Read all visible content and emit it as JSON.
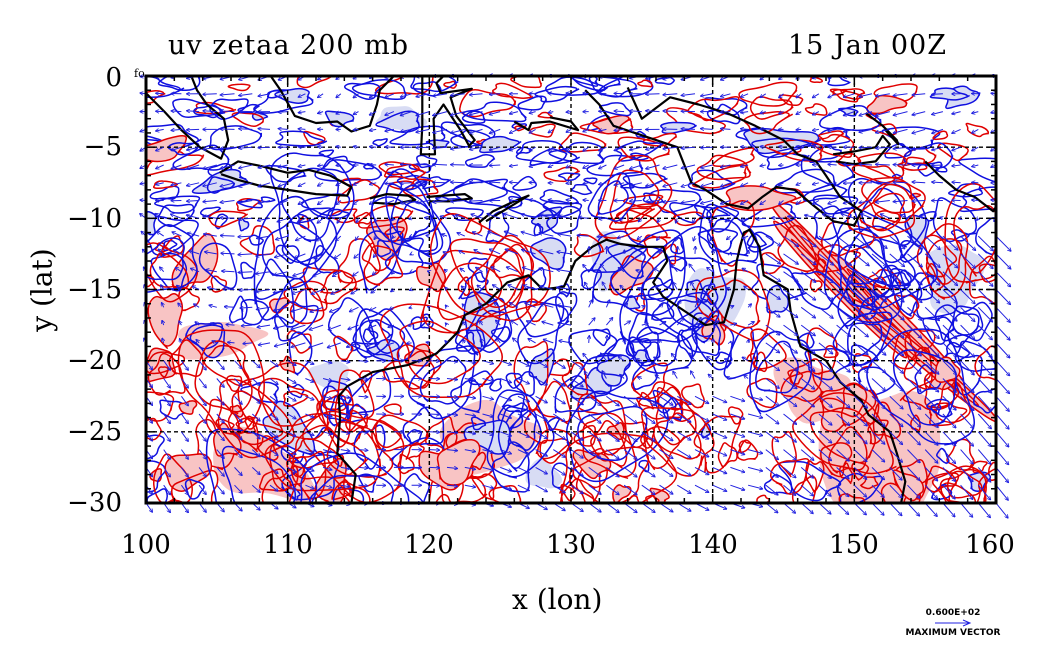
{
  "header": {
    "title_left": "uv zetaa 200 mb",
    "title_right": "15 Jan 00Z"
  },
  "axes": {
    "xlabel": "x (lon)",
    "ylabel": "y (lat)",
    "xticks": [
      "100",
      "110",
      "120",
      "130",
      "140",
      "150",
      "160"
    ],
    "yticks": [
      "0",
      "−5",
      "−10",
      "−15",
      "−20",
      "−25",
      "−30"
    ],
    "corner_label": "fo"
  },
  "legend": {
    "max_vector_value": "0.600E+02",
    "max_vector_label": "MAXIMUM VECTOR"
  },
  "chart_data": {
    "type": "map",
    "title": "uv zetaa 200 mb",
    "subtitle": "15 Jan 00Z",
    "xlabel": "x (lon)",
    "ylabel": "y (lat)",
    "xlim": [
      100,
      160
    ],
    "ylim": [
      -30,
      0
    ],
    "xticks": [
      100,
      110,
      120,
      130,
      140,
      150,
      160
    ],
    "yticks": [
      0,
      -5,
      -10,
      -15,
      -20,
      -25,
      -30
    ],
    "grid": true,
    "fields": [
      "wind vectors (u, v)",
      "absolute vorticity contours (positive red, negative blue)"
    ],
    "max_vector": 60,
    "colors": {
      "positive": "#e00000",
      "positive_fill": "#f8c4c4",
      "negative": "#1010e0",
      "negative_fill": "#d8dcf4",
      "vector": "#2020e0",
      "coast": "#000000"
    },
    "coastlines": [
      {
        "name": "western-australia-coast",
        "points": [
          [
            114.5,
            -30
          ],
          [
            114.8,
            -28
          ],
          [
            113.5,
            -26.5
          ],
          [
            113.7,
            -24
          ],
          [
            113.6,
            -22.5
          ],
          [
            114.2,
            -21.8
          ],
          [
            116,
            -20.8
          ],
          [
            118.5,
            -20.3
          ],
          [
            120.5,
            -19.5
          ],
          [
            122,
            -18
          ],
          [
            122.5,
            -16.8
          ],
          [
            124,
            -16
          ],
          [
            125.5,
            -14.5
          ],
          [
            127,
            -14
          ],
          [
            128,
            -15
          ],
          [
            129.5,
            -14.8
          ],
          [
            130.3,
            -13
          ],
          [
            131.5,
            -12
          ],
          [
            132.5,
            -11.5
          ],
          [
            133.5,
            -11.8
          ],
          [
            135,
            -12
          ],
          [
            136.5,
            -12
          ],
          [
            136.8,
            -13
          ],
          [
            135.8,
            -14.5
          ],
          [
            136.5,
            -15.5
          ],
          [
            138,
            -16.5
          ],
          [
            139.5,
            -17.5
          ],
          [
            140.8,
            -17.3
          ],
          [
            141.5,
            -15
          ],
          [
            141.7,
            -13
          ],
          [
            142.2,
            -11
          ],
          [
            142.6,
            -10.8
          ],
          [
            143.3,
            -12
          ],
          [
            143.6,
            -14
          ],
          [
            145.3,
            -15
          ],
          [
            145.5,
            -16.5
          ],
          [
            146.2,
            -19
          ],
          [
            148,
            -20
          ],
          [
            149,
            -21.5
          ],
          [
            150.5,
            -22.8
          ],
          [
            151,
            -23.8
          ],
          [
            152.5,
            -25
          ],
          [
            153,
            -26.5
          ],
          [
            153.6,
            -28.5
          ],
          [
            153.3,
            -30
          ]
        ]
      },
      {
        "name": "new-guinea-south-coast",
        "points": [
          [
            131,
            -1
          ],
          [
            132,
            -2
          ],
          [
            133,
            -3.5
          ],
          [
            134.5,
            -4
          ],
          [
            136,
            -4.5
          ],
          [
            137.5,
            -5
          ],
          [
            138.5,
            -7.5
          ],
          [
            139.5,
            -8
          ],
          [
            141,
            -9
          ],
          [
            142.5,
            -9.3
          ],
          [
            143.5,
            -8.5
          ],
          [
            144.5,
            -7.8
          ],
          [
            145.8,
            -8
          ],
          [
            147,
            -9
          ],
          [
            148.5,
            -10.2
          ],
          [
            150,
            -10.5
          ],
          [
            150.5,
            -9.5
          ],
          [
            149,
            -8.5
          ],
          [
            148,
            -7
          ],
          [
            147.3,
            -6
          ],
          [
            146,
            -5.5
          ],
          [
            145,
            -4.5
          ],
          [
            143,
            -3.5
          ],
          [
            141,
            -2.6
          ],
          [
            139,
            -2
          ],
          [
            137,
            -1.5
          ],
          [
            135,
            -3
          ],
          [
            134,
            -0.8
          ]
        ]
      },
      {
        "name": "new-britain",
        "points": [
          [
            148.5,
            -5.5
          ],
          [
            150,
            -5.3
          ],
          [
            151.5,
            -5
          ],
          [
            152,
            -4.2
          ],
          [
            152.5,
            -4.8
          ],
          [
            151.5,
            -6
          ],
          [
            150,
            -6.2
          ],
          [
            148.7,
            -6
          ]
        ]
      },
      {
        "name": "new-ireland",
        "points": [
          [
            150.8,
            -2.6
          ],
          [
            152,
            -3.5
          ],
          [
            153,
            -4.5
          ],
          [
            153.1,
            -4.8
          ],
          [
            152.2,
            -3.8
          ]
        ]
      },
      {
        "name": "solomon-islands",
        "points": [
          [
            155,
            -6
          ],
          [
            156,
            -7
          ],
          [
            157.2,
            -8
          ],
          [
            158.5,
            -8.5
          ],
          [
            159.8,
            -9.5
          ],
          [
            160,
            -9.2
          ]
        ]
      },
      {
        "name": "timor",
        "points": [
          [
            124,
            -10.2
          ],
          [
            125.5,
            -9.3
          ],
          [
            127,
            -8.4
          ],
          [
            126,
            -8.8
          ],
          [
            124.5,
            -9.5
          ],
          [
            123.5,
            -10.3
          ]
        ]
      },
      {
        "name": "flores",
        "points": [
          [
            119.8,
            -8.5
          ],
          [
            121,
            -8.4
          ],
          [
            122.5,
            -8.3
          ],
          [
            123,
            -8.6
          ],
          [
            121.5,
            -8.8
          ],
          [
            120,
            -8.8
          ]
        ]
      },
      {
        "name": "sumbawa-lombok",
        "points": [
          [
            115.8,
            -8.6
          ],
          [
            117,
            -8.3
          ],
          [
            118.5,
            -8.4
          ],
          [
            119,
            -8.7
          ],
          [
            117.5,
            -9
          ],
          [
            116,
            -8.9
          ]
        ]
      },
      {
        "name": "java",
        "points": [
          [
            105.2,
            -6.8
          ],
          [
            106.5,
            -6
          ],
          [
            108,
            -6.3
          ],
          [
            110,
            -6.8
          ],
          [
            111.5,
            -6.6
          ],
          [
            113,
            -7
          ],
          [
            114.5,
            -7.8
          ],
          [
            114.2,
            -8.4
          ],
          [
            112,
            -8.3
          ],
          [
            110,
            -8
          ],
          [
            108,
            -7.7
          ],
          [
            106.5,
            -7.3
          ],
          [
            105.3,
            -6.9
          ]
        ]
      },
      {
        "name": "sumatra",
        "points": [
          [
            100,
            -1.2
          ],
          [
            101.3,
            -2.5
          ],
          [
            102.5,
            -3.8
          ],
          [
            103.8,
            -5
          ],
          [
            105.3,
            -5.8
          ],
          [
            105.8,
            -4.5
          ],
          [
            105.5,
            -3
          ],
          [
            104.3,
            -2
          ],
          [
            103.6,
            -1
          ],
          [
            103.2,
            0
          ]
        ]
      },
      {
        "name": "borneo-south",
        "points": [
          [
            108.8,
            0
          ],
          [
            109.5,
            -1
          ],
          [
            110.5,
            -2.8
          ],
          [
            112,
            -3.3
          ],
          [
            113.5,
            -3.2
          ],
          [
            114.5,
            -3.9
          ],
          [
            115.8,
            -3.5
          ],
          [
            116.3,
            -2
          ],
          [
            116.5,
            -1
          ],
          [
            117.5,
            0
          ]
        ]
      },
      {
        "name": "sulawesi",
        "points": [
          [
            119.5,
            0
          ],
          [
            119.5,
            -2
          ],
          [
            119.5,
            -3.5
          ],
          [
            119.4,
            -5.5
          ],
          [
            120.4,
            -5.5
          ],
          [
            120.3,
            -3
          ],
          [
            121,
            -2
          ],
          [
            122.2,
            -3.8
          ],
          [
            122.8,
            -4.9
          ],
          [
            123.2,
            -4.5
          ],
          [
            121.9,
            -2.8
          ],
          [
            121.5,
            -1.5
          ],
          [
            123,
            -0.9
          ],
          [
            120.8,
            -1.2
          ],
          [
            120.5,
            -0.5
          ],
          [
            121,
            0
          ]
        ]
      },
      {
        "name": "buru-seram",
        "points": [
          [
            126,
            -3.2
          ],
          [
            127,
            -3.8
          ],
          [
            127.2,
            -3.3
          ],
          [
            128.5,
            -3.2
          ],
          [
            130.5,
            -3.8
          ],
          [
            130,
            -3.2
          ],
          [
            128.5,
            -2.9
          ]
        ]
      }
    ]
  }
}
